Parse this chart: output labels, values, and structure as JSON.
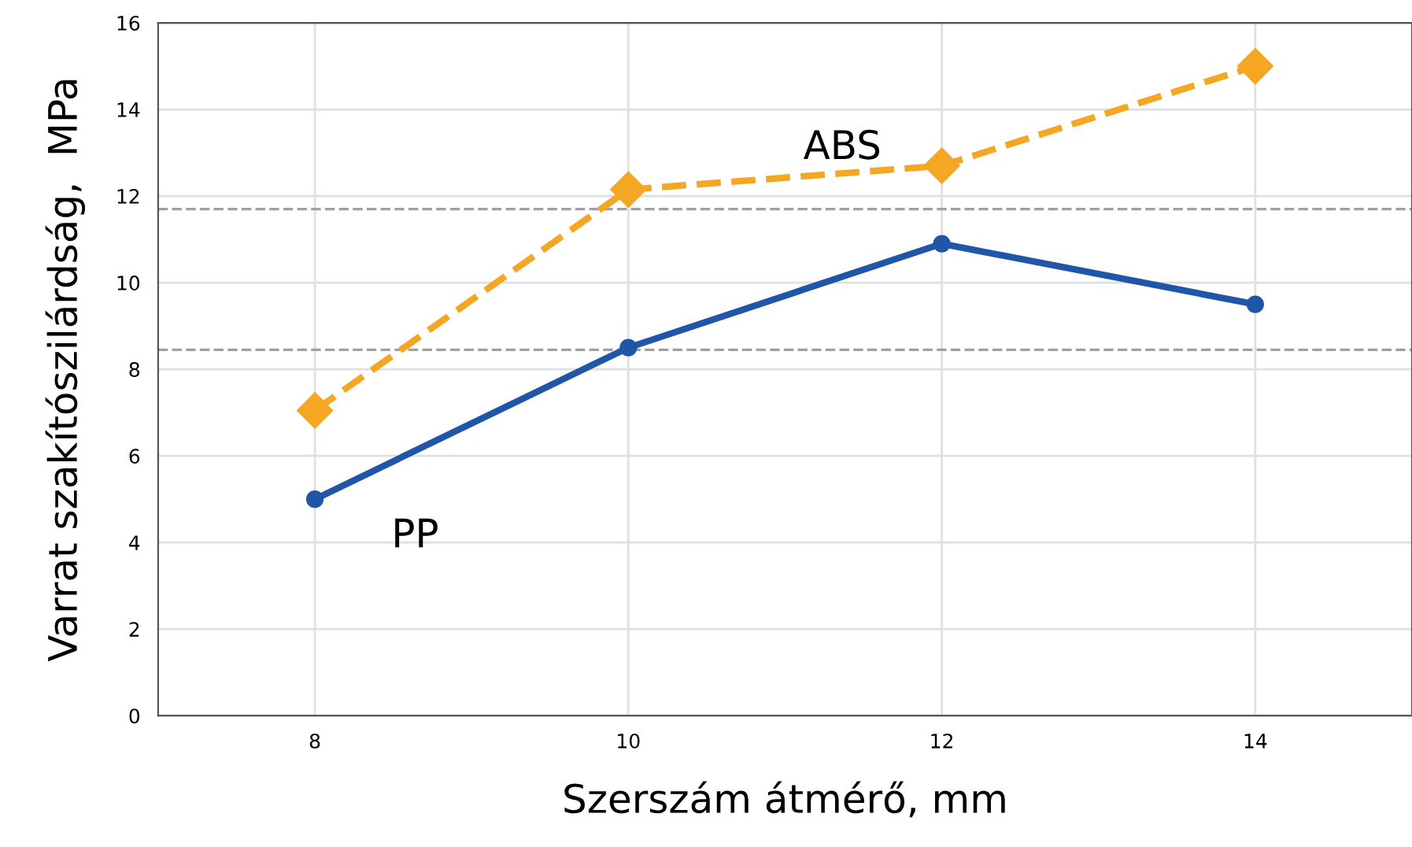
{
  "chart_data": {
    "type": "line",
    "xlabel": "Szerszám átmérő, mm",
    "ylabel": "Varrat szakítószilárdság,  MPa",
    "x": [
      8,
      10,
      12,
      14
    ],
    "xlim": [
      7,
      15
    ],
    "xticks": [
      8,
      10,
      12,
      14
    ],
    "ylim": [
      0,
      16
    ],
    "yticks": [
      0,
      2,
      4,
      6,
      8,
      10,
      12,
      14,
      16
    ],
    "grid": true,
    "series": [
      {
        "name": "ABS",
        "color": "#f5a623",
        "values": [
          7.05,
          12.15,
          12.7,
          15.0
        ],
        "marker": "diamond",
        "line_style": "dashed"
      },
      {
        "name": "PP",
        "color": "#1f56a8",
        "values": [
          5.0,
          8.5,
          10.9,
          9.5
        ],
        "marker": "circle",
        "line_style": "solid"
      }
    ],
    "ref_lines": [
      {
        "axis": "y",
        "value": 11.7,
        "color": "#a0a0a0",
        "line_style": "dashed"
      },
      {
        "axis": "y",
        "value": 8.45,
        "color": "#a0a0a0",
        "line_style": "dashed"
      }
    ]
  }
}
